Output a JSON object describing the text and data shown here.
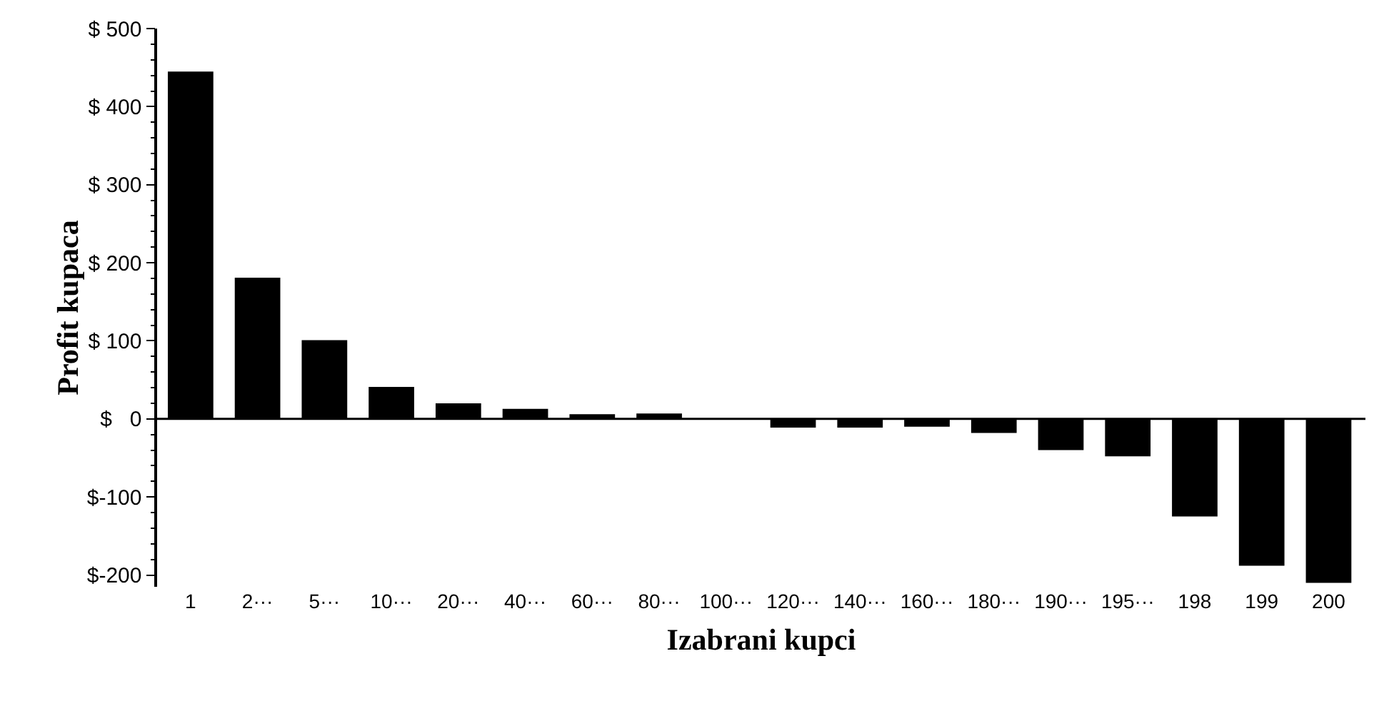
{
  "chart_data": {
    "type": "bar",
    "xlabel": "Izabrani kupci",
    "ylabel": "Profit kupaca",
    "categories": [
      "1",
      "2···",
      "5···",
      "10···",
      "20···",
      "40···",
      "60···",
      "80···",
      "100···",
      "120···",
      "140···",
      "160···",
      "180···",
      "190···",
      "195···",
      "198",
      "199",
      "200"
    ],
    "values": [
      445,
      181,
      101,
      41,
      20,
      13,
      6,
      7,
      0,
      -11,
      -11,
      -10,
      -18,
      -40,
      -48,
      -125,
      -188,
      -210
    ],
    "color": "#000000",
    "ylim": [
      -215,
      500
    ],
    "yticks": [
      {
        "value": 500,
        "label": "$ 500"
      },
      {
        "value": 400,
        "label": "$ 400"
      },
      {
        "value": 300,
        "label": "$ 300"
      },
      {
        "value": 200,
        "label": "$ 200"
      },
      {
        "value": 100,
        "label": "$ 100"
      },
      {
        "value": 0,
        "label": "$   0"
      },
      {
        "value": -100,
        "label": "$-100"
      },
      {
        "value": -200,
        "label": "$-200"
      }
    ],
    "ref_lines": [
      {
        "axis": "y",
        "value": 0,
        "color": "#000000"
      }
    ],
    "grid": false
  }
}
